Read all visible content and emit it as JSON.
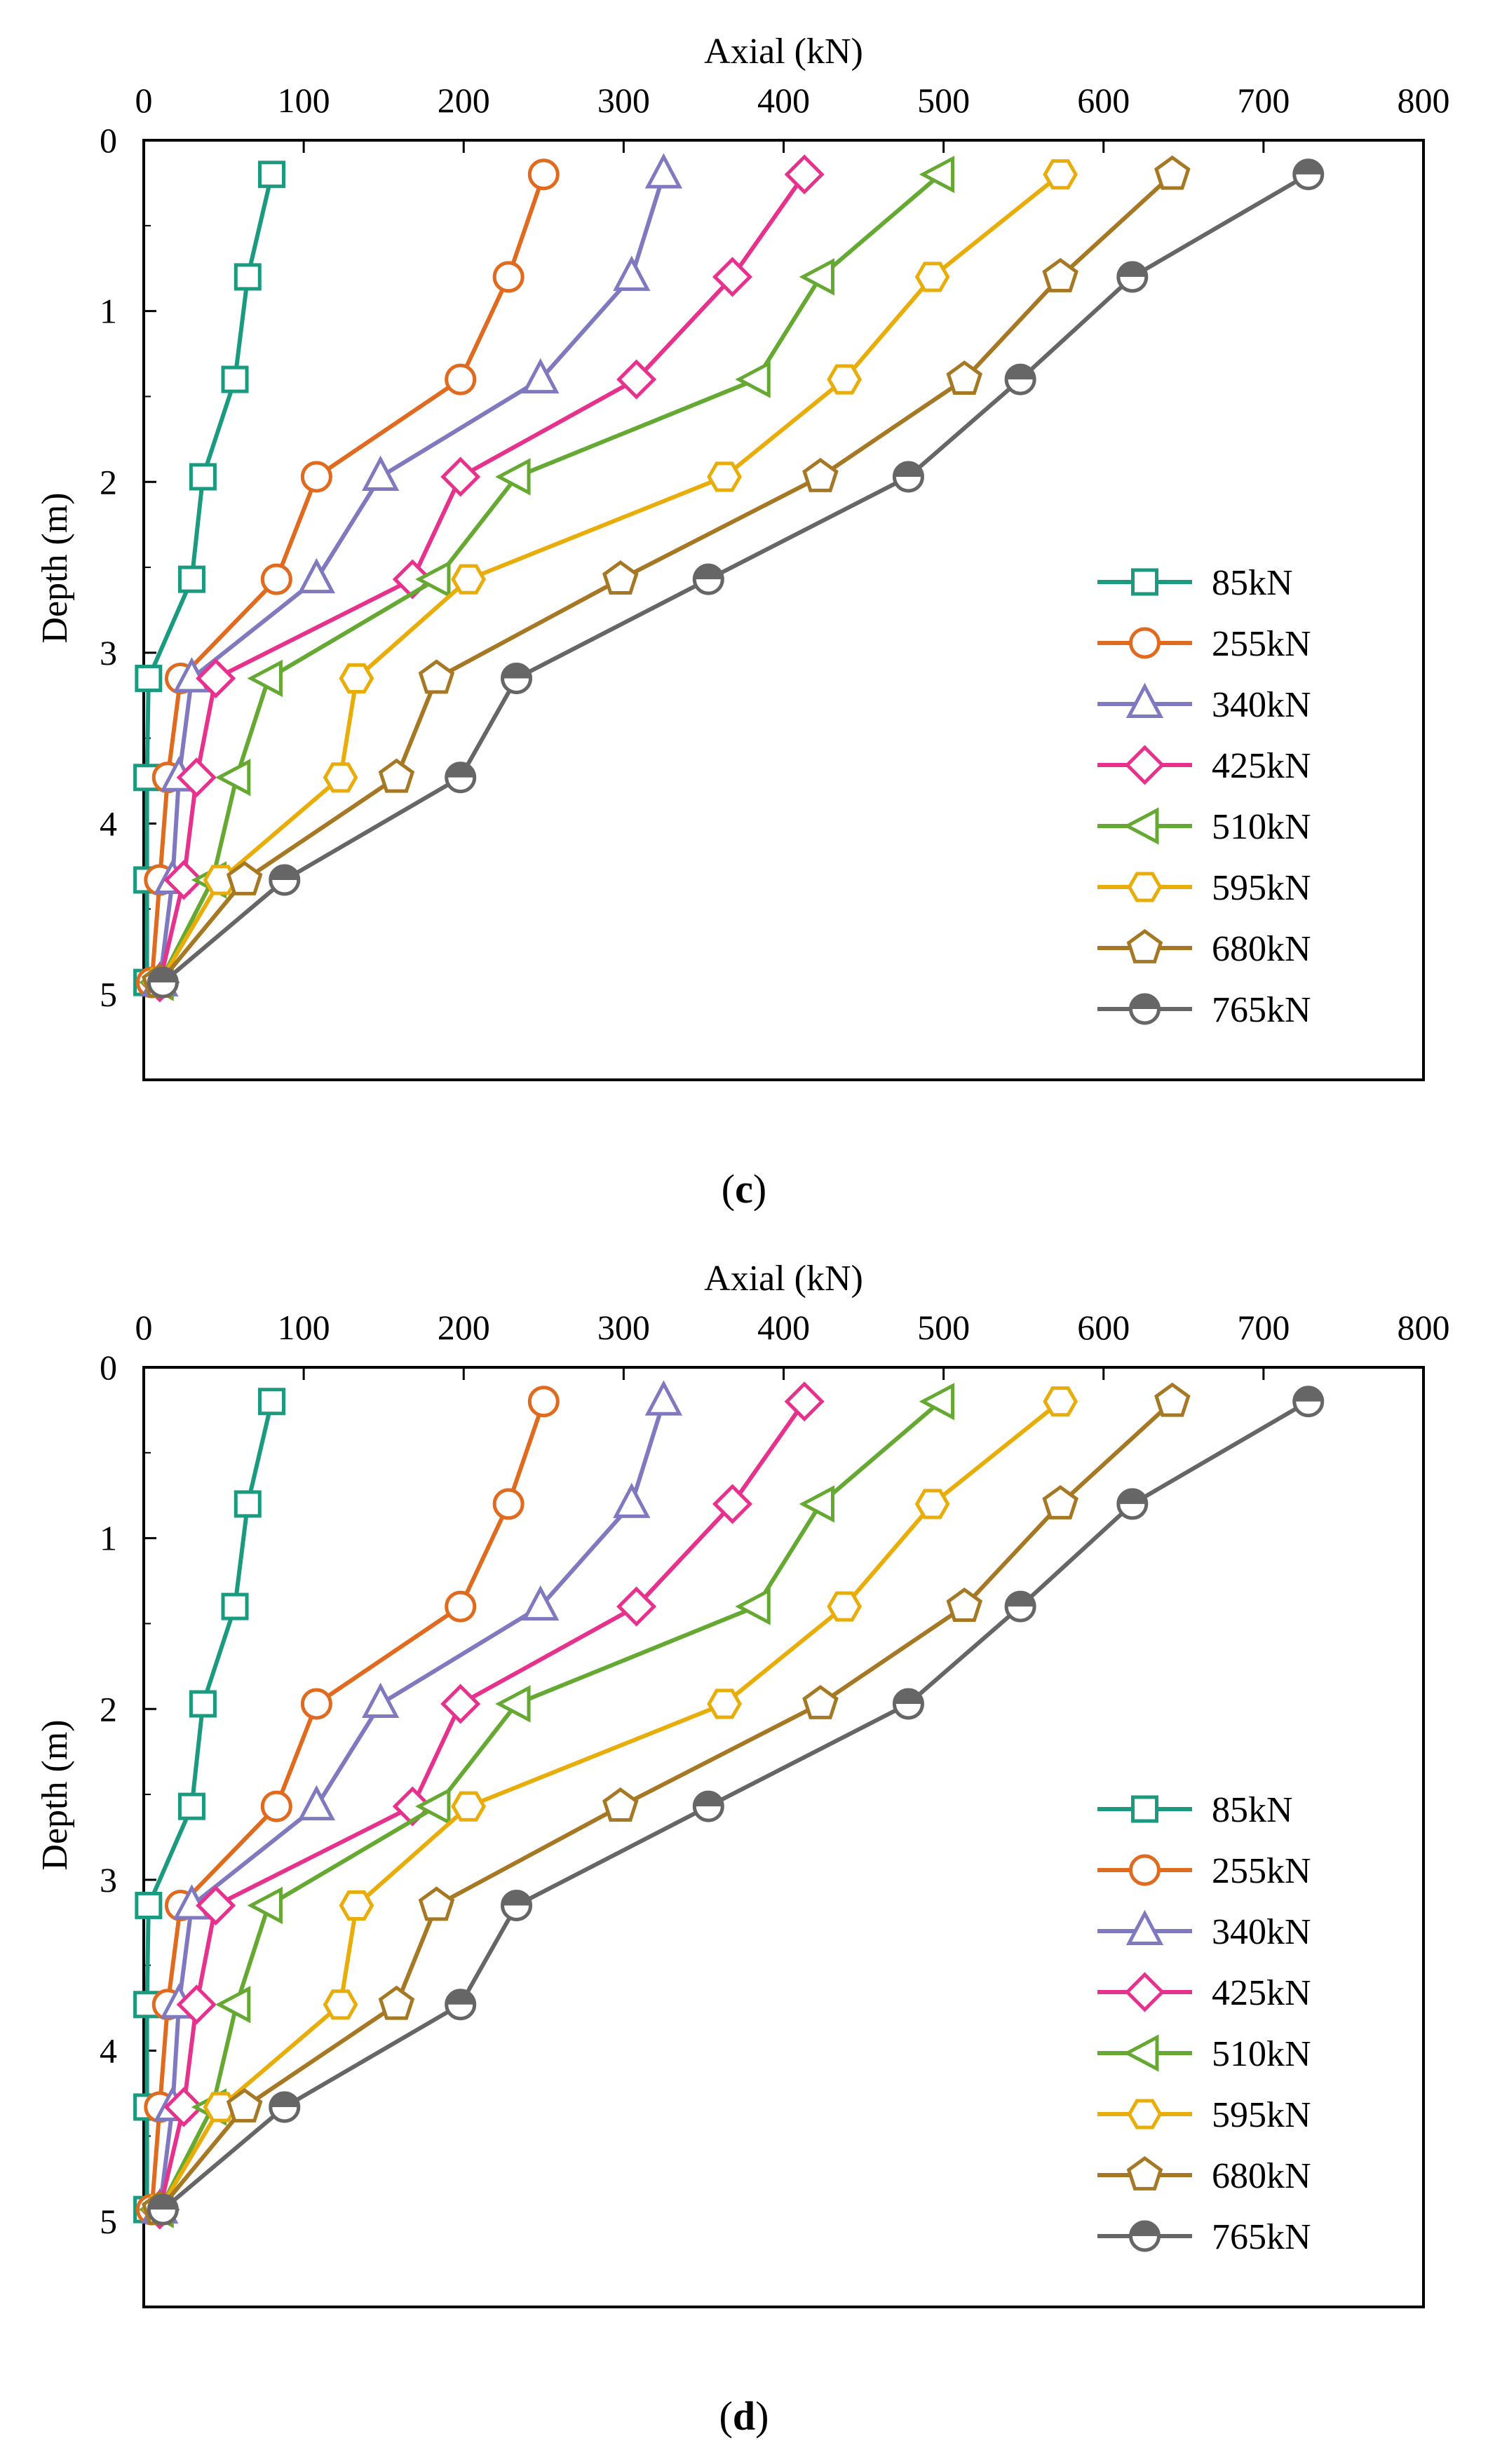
{
  "chart_data": [
    {
      "type": "line",
      "panel_label": "c",
      "xlabel": "Axial (kN)",
      "ylabel": "Depth (m)",
      "xlim": [
        0,
        800
      ],
      "ylim": [
        0,
        5.5
      ],
      "x_axis_position": "top",
      "y_axis_inverted": true,
      "xticks": [
        "0",
        "100",
        "200",
        "300",
        "400",
        "500",
        "600",
        "700",
        "800"
      ],
      "yticks": [
        "0",
        "1",
        "2",
        "3",
        "4",
        "5"
      ],
      "legend_position": "right-bottom",
      "series": [
        {
          "name": "85kN",
          "color": "#1a9a7f",
          "marker": "square",
          "axial": [
            80,
            65,
            57,
            37,
            30,
            3,
            2,
            2,
            2
          ],
          "depth": [
            0.2,
            0.8,
            1.4,
            1.97,
            2.57,
            3.15,
            3.73,
            4.33,
            4.93
          ]
        },
        {
          "name": "255kN",
          "color": "#e06b1f",
          "marker": "circle",
          "axial": [
            250,
            228,
            198,
            108,
            83,
            23,
            15,
            10,
            5
          ],
          "depth": [
            0.2,
            0.8,
            1.4,
            1.97,
            2.57,
            3.15,
            3.73,
            4.33,
            4.93
          ]
        },
        {
          "name": "340kN",
          "color": "#7f79bf",
          "marker": "triangle-up",
          "axial": [
            325,
            305,
            248,
            148,
            108,
            30,
            22,
            18,
            10
          ],
          "depth": [
            0.2,
            0.8,
            1.4,
            1.97,
            2.57,
            3.15,
            3.73,
            4.33,
            4.93
          ]
        },
        {
          "name": "425kN",
          "color": "#e6318d",
          "marker": "diamond",
          "axial": [
            413,
            368,
            308,
            198,
            168,
            45,
            33,
            25,
            10
          ],
          "depth": [
            0.2,
            0.8,
            1.4,
            1.97,
            2.57,
            3.15,
            3.73,
            4.33,
            4.93
          ]
        },
        {
          "name": "510kN",
          "color": "#65a832",
          "marker": "triangle-left",
          "axial": [
            498,
            423,
            383,
            233,
            183,
            78,
            58,
            43,
            10
          ],
          "depth": [
            0.2,
            0.8,
            1.4,
            1.97,
            2.57,
            3.15,
            3.73,
            4.33,
            4.93
          ]
        },
        {
          "name": "595kN",
          "color": "#e8ad08",
          "marker": "hexagon",
          "axial": [
            573,
            493,
            438,
            363,
            203,
            133,
            123,
            48,
            10
          ],
          "depth": [
            0.2,
            0.8,
            1.4,
            1.97,
            2.57,
            3.15,
            3.73,
            4.33,
            4.93
          ]
        },
        {
          "name": "680kN",
          "color": "#a67824",
          "marker": "pentagon",
          "axial": [
            643,
            573,
            513,
            423,
            298,
            183,
            158,
            63,
            10
          ],
          "depth": [
            0.2,
            0.8,
            1.4,
            1.97,
            2.57,
            3.15,
            3.73,
            4.33,
            4.93
          ]
        },
        {
          "name": "765kN",
          "color": "#666666",
          "marker": "half-filled-circle",
          "axial": [
            728,
            618,
            548,
            478,
            353,
            233,
            198,
            88,
            12
          ],
          "depth": [
            0.2,
            0.8,
            1.4,
            1.97,
            2.57,
            3.15,
            3.73,
            4.33,
            4.93
          ]
        }
      ]
    },
    {
      "type": "line",
      "panel_label": "d",
      "xlabel": "Axial (kN)",
      "ylabel": "Depth (m)",
      "xlim": [
        0,
        800
      ],
      "ylim": [
        0,
        5.5
      ],
      "x_axis_position": "top",
      "y_axis_inverted": true,
      "xticks": [
        "0",
        "100",
        "200",
        "300",
        "400",
        "500",
        "600",
        "700",
        "800"
      ],
      "yticks": [
        "0",
        "1",
        "2",
        "3",
        "4",
        "5"
      ],
      "legend_position": "right-bottom",
      "series": [
        {
          "name": "85kN",
          "color": "#1a9a7f",
          "marker": "square",
          "axial": [
            80,
            65,
            57,
            37,
            30,
            3,
            2,
            2,
            2
          ],
          "depth": [
            0.2,
            0.8,
            1.4,
            1.97,
            2.57,
            3.15,
            3.73,
            4.33,
            4.93
          ]
        },
        {
          "name": "255kN",
          "color": "#e06b1f",
          "marker": "circle",
          "axial": [
            250,
            228,
            198,
            108,
            83,
            23,
            15,
            10,
            5
          ],
          "depth": [
            0.2,
            0.8,
            1.4,
            1.97,
            2.57,
            3.15,
            3.73,
            4.33,
            4.93
          ]
        },
        {
          "name": "340kN",
          "color": "#7f79bf",
          "marker": "triangle-up",
          "axial": [
            325,
            305,
            248,
            148,
            108,
            30,
            22,
            18,
            10
          ],
          "depth": [
            0.2,
            0.8,
            1.4,
            1.97,
            2.57,
            3.15,
            3.73,
            4.33,
            4.93
          ]
        },
        {
          "name": "425kN",
          "color": "#e6318d",
          "marker": "diamond",
          "axial": [
            413,
            368,
            308,
            198,
            168,
            45,
            33,
            25,
            10
          ],
          "depth": [
            0.2,
            0.8,
            1.4,
            1.97,
            2.57,
            3.15,
            3.73,
            4.33,
            4.93
          ]
        },
        {
          "name": "510kN",
          "color": "#65a832",
          "marker": "triangle-left",
          "axial": [
            498,
            423,
            383,
            233,
            183,
            78,
            58,
            43,
            10
          ],
          "depth": [
            0.2,
            0.8,
            1.4,
            1.97,
            2.57,
            3.15,
            3.73,
            4.33,
            4.93
          ]
        },
        {
          "name": "595kN",
          "color": "#e8ad08",
          "marker": "hexagon",
          "axial": [
            573,
            493,
            438,
            363,
            203,
            133,
            123,
            48,
            10
          ],
          "depth": [
            0.2,
            0.8,
            1.4,
            1.97,
            2.57,
            3.15,
            3.73,
            4.33,
            4.93
          ]
        },
        {
          "name": "680kN",
          "color": "#a67824",
          "marker": "pentagon",
          "axial": [
            643,
            573,
            513,
            423,
            298,
            183,
            158,
            63,
            10
          ],
          "depth": [
            0.2,
            0.8,
            1.4,
            1.97,
            2.57,
            3.15,
            3.73,
            4.33,
            4.93
          ]
        },
        {
          "name": "765kN",
          "color": "#666666",
          "marker": "half-filled-circle",
          "axial": [
            728,
            618,
            548,
            478,
            353,
            233,
            198,
            88,
            12
          ],
          "depth": [
            0.2,
            0.8,
            1.4,
            1.97,
            2.57,
            3.15,
            3.73,
            4.33,
            4.93
          ]
        }
      ]
    }
  ],
  "captions": {
    "c": {
      "open": "(",
      "letter": "c",
      "close": ")"
    },
    "d": {
      "open": "(",
      "letter": "d",
      "close": ")"
    }
  }
}
